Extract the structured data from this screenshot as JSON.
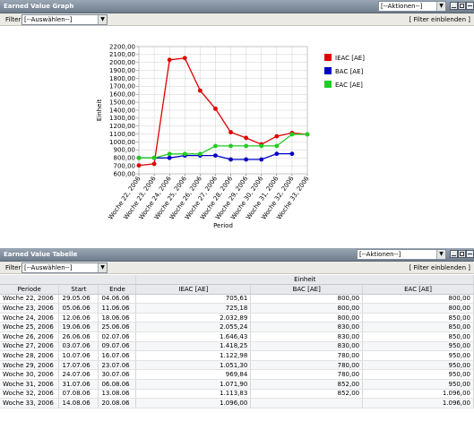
{
  "graph_panel": {
    "title": "Earned Value Graph",
    "actions": "[--Aktionen--]",
    "filter_label": "Filter",
    "filter_select": "[--Auswählen--]",
    "filter_link": "[ Filter einblenden ]"
  },
  "table_panel": {
    "title": "Earned Value Tabelle",
    "actions": "[--Aktionen--]",
    "filter_label": "Filter",
    "filter_select": "[--Auswählen--]",
    "filter_link": "[ Filter einblenden ]",
    "group_header": "Einheit",
    "columns": [
      "Periode",
      "Start",
      "Ende",
      "IEAC [AE]",
      "BAC [AE]",
      "EAC [AE]"
    ],
    "rows": [
      [
        "Woche 22, 2006",
        "29.05.06",
        "04.06.06",
        "705,61",
        "800,00",
        "800,00"
      ],
      [
        "Woche 23, 2006",
        "05.06.06",
        "11.06.06",
        "725,18",
        "800,00",
        "800,00"
      ],
      [
        "Woche 24, 2006",
        "12.06.06",
        "18.06.06",
        "2.032,89",
        "800,00",
        "850,00"
      ],
      [
        "Woche 25, 2006",
        "19.06.06",
        "25.06.06",
        "2.055,24",
        "830,00",
        "850,00"
      ],
      [
        "Woche 26, 2006",
        "26.06.06",
        "02.07.06",
        "1.646,43",
        "830,00",
        "850,00"
      ],
      [
        "Woche 27, 2006",
        "03.07.06",
        "09.07.06",
        "1.418,25",
        "830,00",
        "950,00"
      ],
      [
        "Woche 28, 2006",
        "10.07.06",
        "16.07.06",
        "1.122,98",
        "780,00",
        "950,00"
      ],
      [
        "Woche 29, 2006",
        "17.07.06",
        "23.07.06",
        "1.051,30",
        "780,00",
        "950,00"
      ],
      [
        "Woche 30, 2006",
        "24.07.06",
        "30.07.06",
        "969,84",
        "780,00",
        "950,00"
      ],
      [
        "Woche 31, 2006",
        "31.07.06",
        "06.08.06",
        "1.071,90",
        "852,00",
        "950,00"
      ],
      [
        "Woche 32, 2006",
        "07.08.06",
        "13.08.06",
        "1.113,83",
        "852,00",
        "1.096,00"
      ],
      [
        "Woche 33, 2006",
        "14.08.06",
        "20.08.06",
        "1.096,00",
        "",
        "1.096,00"
      ]
    ]
  },
  "chart_data": {
    "type": "line",
    "xlabel": "Period",
    "ylabel": "Einheit",
    "ylim": [
      600,
      2200
    ],
    "yticks": [
      "600,00",
      "700,00",
      "800,00",
      "900,00",
      "1000,00",
      "1100,00",
      "1200,00",
      "1300,00",
      "1400,00",
      "1500,00",
      "1600,00",
      "1700,00",
      "1800,00",
      "1900,00",
      "2000,00",
      "2100,00",
      "2200,00"
    ],
    "categories": [
      "Woche 22, 2006",
      "Woche 23, 2006",
      "Woche 24, 2006",
      "Woche 25, 2006",
      "Woche 26, 2006",
      "Woche 27, 2006",
      "Woche 28, 2006",
      "Woche 29, 2006",
      "Woche 30, 2006",
      "Woche 31, 2006",
      "Woche 32, 2006",
      "Woche 33, 2006"
    ],
    "legend_position": "right",
    "grid": true,
    "series": [
      {
        "name": "IEAC [AE]",
        "color": "#e00000",
        "values": [
          705.61,
          725.18,
          2032.89,
          2055.24,
          1646.43,
          1418.25,
          1122.98,
          1051.3,
          969.84,
          1071.9,
          1113.83,
          1096.0
        ]
      },
      {
        "name": "BAC [AE]",
        "color": "#0000c8",
        "values": [
          800,
          800,
          800,
          830,
          830,
          830,
          780,
          780,
          780,
          852,
          852,
          null
        ]
      },
      {
        "name": "EAC [AE]",
        "color": "#22cc22",
        "values": [
          800,
          800,
          850,
          850,
          850,
          950,
          950,
          950,
          950,
          950,
          1096,
          1096
        ]
      }
    ]
  }
}
